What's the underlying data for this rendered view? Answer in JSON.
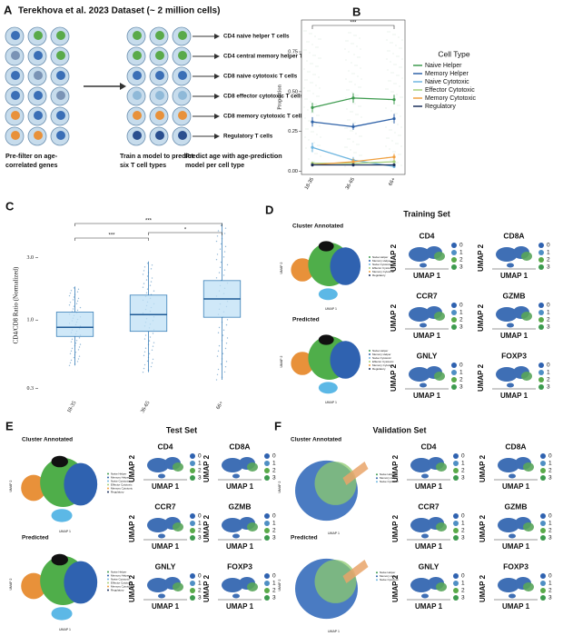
{
  "panel_letters": [
    "A",
    "B",
    "C",
    "D",
    "E",
    "F"
  ],
  "panel_a": {
    "title": "Terekhova et al. 2023 Dataset (~ 2 million cells)",
    "cell_types": [
      "CD4 naive helper T cells",
      "CD4 central memory helper T cells",
      "CD8 naive cytotoxic T cells",
      "CD8 effector cytotoxic T cells",
      "CD8 memory cytotoxic T cells",
      "Regulatory T cells"
    ],
    "captions": [
      [
        "Pre-filter on age-",
        "correlated genes"
      ],
      [
        "Train a model to predict",
        "six T cell types"
      ],
      [
        "Predict age with age-prediction",
        "model per cell type"
      ]
    ]
  },
  "chart_data": [
    {
      "type": "line",
      "categories": [
        "18-35",
        "36-65",
        "66+"
      ],
      "y_label": "Proportion",
      "ylim": [
        -0.02,
        0.95
      ],
      "yticks": [
        {
          "value": 0,
          "label": "0.00"
        },
        {
          "value": 0.25,
          "label": "0.25"
        },
        {
          "value": 0.5,
          "label": "0.50"
        },
        {
          "value": 0.75,
          "label": "0.75"
        }
      ],
      "legend_title": "Cell Type",
      "legend_position": "right",
      "annotation": "***",
      "series": [
        {
          "name": "Naive Helper",
          "color": "#3e9b4f",
          "values": [
            0.4,
            0.46,
            0.45
          ],
          "errors": [
            0.03,
            0.03,
            0.03
          ]
        },
        {
          "name": "Memory Helper",
          "color": "#2f62a8",
          "values": [
            0.31,
            0.28,
            0.33
          ],
          "errors": [
            0.03,
            0.02,
            0.03
          ]
        },
        {
          "name": "Naive Cytotoxic",
          "color": "#6fb6e0",
          "values": [
            0.15,
            0.07,
            0.03
          ],
          "errors": [
            0.03,
            0.02,
            0.01
          ]
        },
        {
          "name": "Effector Cytotoxic",
          "color": "#a6cf7a",
          "values": [
            0.05,
            0.05,
            0.06
          ],
          "errors": [
            0.01,
            0.01,
            0.01
          ]
        },
        {
          "name": "Memory Cytotoxic",
          "color": "#f0a040",
          "values": [
            0.04,
            0.06,
            0.09
          ],
          "errors": [
            0.01,
            0.02,
            0.02
          ]
        },
        {
          "name": "Regulatory",
          "color": "#1b2f5a",
          "values": [
            0.04,
            0.04,
            0.04
          ],
          "errors": [
            0.01,
            0.01,
            0.01
          ]
        }
      ]
    },
    {
      "type": "box",
      "categories": [
        "18-35",
        "36-65",
        "66+"
      ],
      "y_label": "CD4/CD8 Ratio (Normalized)",
      "log_scale": true,
      "ylim": [
        0.28,
        6
      ],
      "yticks": [
        0.3,
        {
          "value": 1,
          "label": "1.0"
        },
        {
          "value": 3,
          "label": "3.0"
        }
      ],
      "color": "#bfe0f5",
      "edge_color": "#3a7fb8",
      "boxes": [
        {
          "low": 0.45,
          "q1": 0.75,
          "median": 0.88,
          "q3": 1.15,
          "high": 1.8
        },
        {
          "low": 0.4,
          "q1": 0.82,
          "median": 1.1,
          "q3": 1.55,
          "high": 2.8
        },
        {
          "low": 0.35,
          "q1": 1.05,
          "median": 1.45,
          "q3": 2.0,
          "high": 5.5
        }
      ],
      "comparisons": [
        {
          "from": 0,
          "to": 1,
          "label": "***"
        },
        {
          "from": 1,
          "to": 2,
          "label": "*"
        },
        {
          "from": 0,
          "to": 2,
          "label": "***"
        }
      ]
    }
  ],
  "umap": {
    "sets": [
      "Training Set",
      "Test Set",
      "Validation Set"
    ],
    "views": [
      "Cluster Annotated",
      "Predicted"
    ],
    "genes": [
      "CD4",
      "CD8A",
      "CCR7",
      "GZMB",
      "GNLY",
      "FOXP3"
    ],
    "levels": [
      0,
      1,
      2,
      3
    ],
    "axis_x": "UMAP 1",
    "axis_y": "UMAP 2"
  }
}
